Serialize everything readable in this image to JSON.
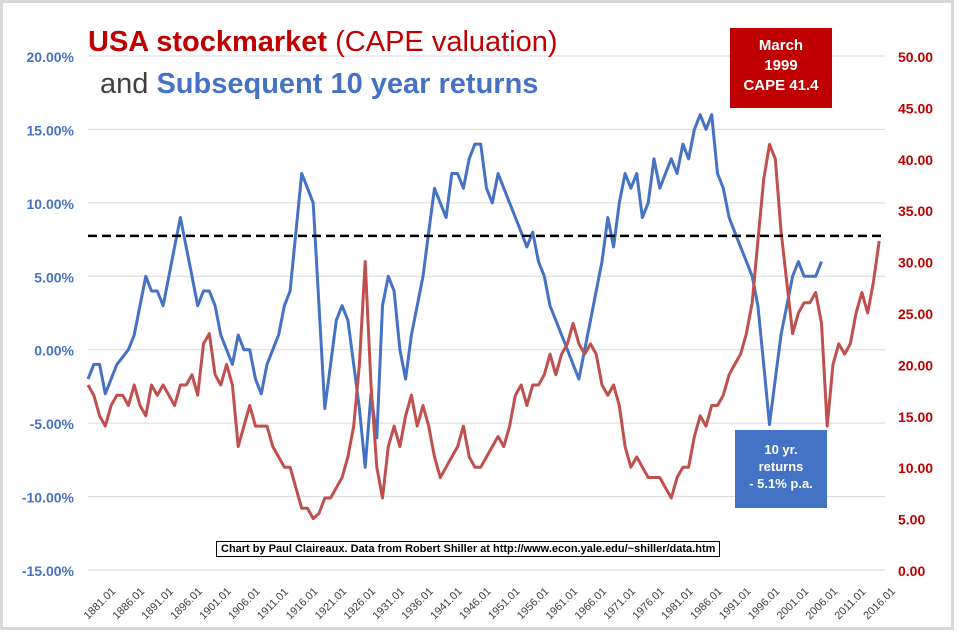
{
  "title": {
    "part1": "USA stockmarket",
    "part2": " (CAPE valuation)",
    "part3": "and ",
    "part4": "Subsequent 10 year returns"
  },
  "callouts": {
    "march_1999": [
      "March",
      "1999",
      "CAPE 41.4"
    ],
    "returns": [
      "10 yr.",
      "returns",
      "- 5.1% p.a."
    ]
  },
  "credit": "Chart by Paul Claireaux. Data from Robert Shiller at http://www.econ.yale.edu/~shiller/data.htm",
  "colors": {
    "returns_series": "#4472c4",
    "cape_series": "#c0504d",
    "title_red": "#c00000",
    "reference_line": "#000000",
    "grid": "#d9d9d9"
  },
  "chart_data": {
    "type": "line",
    "grid": true,
    "x_tick_labels": [
      "1881.01",
      "1886.01",
      "1891.01",
      "1896.01",
      "1901.01",
      "1906.01",
      "1911.01",
      "1916.01",
      "1921.01",
      "1926.01",
      "1931.01",
      "1936.01",
      "1941.01",
      "1946.01",
      "1951.01",
      "1956.01",
      "1961.01",
      "1966.01",
      "1971.01",
      "1976.01",
      "1981.01",
      "1986.01",
      "1991.01",
      "1996.01",
      "2001.01",
      "2006.01",
      "2011.01",
      "2016.01"
    ],
    "xlim": [
      1881,
      2019
    ],
    "y_left": {
      "ticks": [
        "20.00%",
        "15.00%",
        "10.00%",
        "5.00%",
        "0.00%",
        "-5.00%",
        "-10.00%",
        "-15.00%"
      ],
      "ylim": [
        -15,
        20
      ],
      "unit": "%"
    },
    "y_right": {
      "ticks": [
        "50.00",
        "45.00",
        "40.00",
        "35.00",
        "30.00",
        "25.00",
        "20.00",
        "15.00",
        "10.00",
        "5.00",
        "0.00"
      ],
      "ylim": [
        0,
        50
      ]
    },
    "reference_line": {
      "axis": "right",
      "value": 32.5,
      "style": "dashed"
    },
    "series": [
      {
        "axis": "left",
        "points": [
          [
            1881,
            -2
          ],
          [
            1882,
            -1
          ],
          [
            1883,
            -1
          ],
          [
            1884,
            -3
          ],
          [
            1886,
            -1
          ],
          [
            1888,
            0
          ],
          [
            1889,
            1
          ],
          [
            1890,
            3
          ],
          [
            1891,
            5
          ],
          [
            1892,
            4
          ],
          [
            1893,
            4
          ],
          [
            1894,
            3
          ],
          [
            1895,
            5
          ],
          [
            1896,
            7
          ],
          [
            1897,
            9
          ],
          [
            1898,
            7
          ],
          [
            1899,
            5
          ],
          [
            1900,
            3
          ],
          [
            1901,
            4
          ],
          [
            1902,
            4
          ],
          [
            1903,
            3
          ],
          [
            1904,
            1
          ],
          [
            1905,
            0
          ],
          [
            1906,
            -1
          ],
          [
            1907,
            1
          ],
          [
            1908,
            0
          ],
          [
            1909,
            0
          ],
          [
            1910,
            -2
          ],
          [
            1911,
            -3
          ],
          [
            1912,
            -1
          ],
          [
            1913,
            0
          ],
          [
            1914,
            1
          ],
          [
            1915,
            3
          ],
          [
            1916,
            4
          ],
          [
            1917,
            8
          ],
          [
            1918,
            12
          ],
          [
            1919,
            11
          ],
          [
            1920,
            10
          ],
          [
            1921,
            3
          ],
          [
            1922,
            -4
          ],
          [
            1923,
            -1
          ],
          [
            1924,
            2
          ],
          [
            1925,
            3
          ],
          [
            1926,
            2
          ],
          [
            1927,
            -1
          ],
          [
            1928,
            -4
          ],
          [
            1929,
            -8
          ],
          [
            1930,
            -3
          ],
          [
            1931,
            -6
          ],
          [
            1932,
            3
          ],
          [
            1933,
            5
          ],
          [
            1934,
            4
          ],
          [
            1935,
            0
          ],
          [
            1936,
            -2
          ],
          [
            1937,
            1
          ],
          [
            1938,
            3
          ],
          [
            1939,
            5
          ],
          [
            1940,
            8
          ],
          [
            1941,
            11
          ],
          [
            1942,
            10
          ],
          [
            1943,
            9
          ],
          [
            1944,
            12
          ],
          [
            1945,
            12
          ],
          [
            1946,
            11
          ],
          [
            1947,
            13
          ],
          [
            1948,
            14
          ],
          [
            1949,
            14
          ],
          [
            1950,
            11
          ],
          [
            1951,
            10
          ],
          [
            1952,
            12
          ],
          [
            1953,
            11
          ],
          [
            1954,
            10
          ],
          [
            1955,
            9
          ],
          [
            1956,
            8
          ],
          [
            1957,
            7
          ],
          [
            1958,
            8
          ],
          [
            1959,
            6
          ],
          [
            1960,
            5
          ],
          [
            1961,
            3
          ],
          [
            1962,
            2
          ],
          [
            1963,
            1
          ],
          [
            1964,
            0
          ],
          [
            1965,
            -1
          ],
          [
            1966,
            -2
          ],
          [
            1967,
            0
          ],
          [
            1968,
            2
          ],
          [
            1969,
            4
          ],
          [
            1970,
            6
          ],
          [
            1971,
            9
          ],
          [
            1972,
            7
          ],
          [
            1973,
            10
          ],
          [
            1974,
            12
          ],
          [
            1975,
            11
          ],
          [
            1976,
            12
          ],
          [
            1977,
            9
          ],
          [
            1978,
            10
          ],
          [
            1979,
            13
          ],
          [
            1980,
            11
          ],
          [
            1981,
            12
          ],
          [
            1982,
            13
          ],
          [
            1983,
            12
          ],
          [
            1984,
            14
          ],
          [
            1985,
            13
          ],
          [
            1986,
            15
          ],
          [
            1987,
            16
          ],
          [
            1988,
            15
          ],
          [
            1989,
            16
          ],
          [
            1990,
            12
          ],
          [
            1991,
            11
          ],
          [
            1992,
            9
          ],
          [
            1993,
            8
          ],
          [
            1994,
            7
          ],
          [
            1995,
            6
          ],
          [
            1996,
            5
          ],
          [
            1997,
            3
          ],
          [
            1998,
            -1
          ],
          [
            1999,
            -5.1
          ],
          [
            2000,
            -2
          ],
          [
            2001,
            1
          ],
          [
            2002,
            3
          ],
          [
            2003,
            5
          ],
          [
            2004,
            6
          ],
          [
            2005,
            5
          ],
          [
            2006,
            5
          ],
          [
            2007,
            5
          ],
          [
            2008,
            6
          ]
        ]
      },
      {
        "axis": "right",
        "points": [
          [
            1881,
            18
          ],
          [
            1882,
            17
          ],
          [
            1883,
            15
          ],
          [
            1884,
            14
          ],
          [
            1885,
            16
          ],
          [
            1886,
            17
          ],
          [
            1887,
            17
          ],
          [
            1888,
            16
          ],
          [
            1889,
            18
          ],
          [
            1890,
            16
          ],
          [
            1891,
            15
          ],
          [
            1892,
            18
          ],
          [
            1893,
            17
          ],
          [
            1894,
            18
          ],
          [
            1895,
            17
          ],
          [
            1896,
            16
          ],
          [
            1897,
            18
          ],
          [
            1898,
            18
          ],
          [
            1899,
            19
          ],
          [
            1900,
            17
          ],
          [
            1901,
            22
          ],
          [
            1902,
            23
          ],
          [
            1903,
            19
          ],
          [
            1904,
            18
          ],
          [
            1905,
            20
          ],
          [
            1906,
            18
          ],
          [
            1907,
            12
          ],
          [
            1908,
            14
          ],
          [
            1909,
            16
          ],
          [
            1910,
            14
          ],
          [
            1911,
            14
          ],
          [
            1912,
            14
          ],
          [
            1913,
            12
          ],
          [
            1914,
            11
          ],
          [
            1915,
            10
          ],
          [
            1916,
            10
          ],
          [
            1917,
            8
          ],
          [
            1918,
            6
          ],
          [
            1919,
            6
          ],
          [
            1920,
            5
          ],
          [
            1921,
            5.5
          ],
          [
            1922,
            7
          ],
          [
            1923,
            7
          ],
          [
            1924,
            8
          ],
          [
            1925,
            9
          ],
          [
            1926,
            11
          ],
          [
            1927,
            14
          ],
          [
            1928,
            20
          ],
          [
            1929,
            30
          ],
          [
            1930,
            18
          ],
          [
            1931,
            10
          ],
          [
            1932,
            7
          ],
          [
            1933,
            12
          ],
          [
            1934,
            14
          ],
          [
            1935,
            12
          ],
          [
            1936,
            15
          ],
          [
            1937,
            17
          ],
          [
            1938,
            14
          ],
          [
            1939,
            16
          ],
          [
            1940,
            14
          ],
          [
            1941,
            11
          ],
          [
            1942,
            9
          ],
          [
            1943,
            10
          ],
          [
            1944,
            11
          ],
          [
            1945,
            12
          ],
          [
            1946,
            14
          ],
          [
            1947,
            11
          ],
          [
            1948,
            10
          ],
          [
            1949,
            10
          ],
          [
            1950,
            11
          ],
          [
            1951,
            12
          ],
          [
            1952,
            13
          ],
          [
            1953,
            12
          ],
          [
            1954,
            14
          ],
          [
            1955,
            17
          ],
          [
            1956,
            18
          ],
          [
            1957,
            16
          ],
          [
            1958,
            18
          ],
          [
            1959,
            18
          ],
          [
            1960,
            19
          ],
          [
            1961,
            21
          ],
          [
            1962,
            19
          ],
          [
            1963,
            21
          ],
          [
            1964,
            22
          ],
          [
            1965,
            24
          ],
          [
            1966,
            22
          ],
          [
            1967,
            21
          ],
          [
            1968,
            22
          ],
          [
            1969,
            21
          ],
          [
            1970,
            18
          ],
          [
            1971,
            17
          ],
          [
            1972,
            18
          ],
          [
            1973,
            16
          ],
          [
            1974,
            12
          ],
          [
            1975,
            10
          ],
          [
            1976,
            11
          ],
          [
            1977,
            10
          ],
          [
            1978,
            9
          ],
          [
            1979,
            9
          ],
          [
            1980,
            9
          ],
          [
            1981,
            8
          ],
          [
            1982,
            7
          ],
          [
            1983,
            9
          ],
          [
            1984,
            10
          ],
          [
            1985,
            10
          ],
          [
            1986,
            13
          ],
          [
            1987,
            15
          ],
          [
            1988,
            14
          ],
          [
            1989,
            16
          ],
          [
            1990,
            16
          ],
          [
            1991,
            17
          ],
          [
            1992,
            19
          ],
          [
            1993,
            20
          ],
          [
            1994,
            21
          ],
          [
            1995,
            23
          ],
          [
            1996,
            26
          ],
          [
            1997,
            32
          ],
          [
            1998,
            38
          ],
          [
            1999,
            41.4
          ],
          [
            2000,
            40
          ],
          [
            2001,
            33
          ],
          [
            2002,
            28
          ],
          [
            2003,
            23
          ],
          [
            2004,
            25
          ],
          [
            2005,
            26
          ],
          [
            2006,
            26
          ],
          [
            2007,
            27
          ],
          [
            2008,
            24
          ],
          [
            2009,
            14
          ],
          [
            2010,
            20
          ],
          [
            2011,
            22
          ],
          [
            2012,
            21
          ],
          [
            2013,
            22
          ],
          [
            2014,
            25
          ],
          [
            2015,
            27
          ],
          [
            2016,
            25
          ],
          [
            2017,
            28
          ],
          [
            2018,
            32
          ]
        ]
      }
    ]
  }
}
